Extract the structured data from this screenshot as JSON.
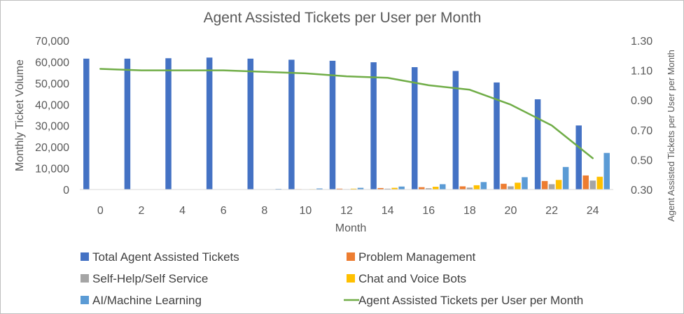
{
  "chart_data": {
    "type": "bar",
    "title": "Agent Assisted Tickets per User per Month",
    "xlabel": "Month",
    "ylabel": "Monthly Ticket Volume",
    "ylabel_right": "Agent Assisted Tickets per User per Month",
    "ylim": [
      0,
      70000
    ],
    "ylim_right": [
      0.3,
      1.3
    ],
    "y_ticks": [
      "0",
      "10,000",
      "20,000",
      "30,000",
      "40,000",
      "50,000",
      "60,000",
      "70,000"
    ],
    "y_right_ticks": [
      "0.30",
      "0.50",
      "0.70",
      "0.90",
      "1.10",
      "1.30"
    ],
    "categories": [
      "0",
      "2",
      "4",
      "6",
      "8",
      "10",
      "12",
      "14",
      "16",
      "18",
      "20",
      "22",
      "24"
    ],
    "grid": false,
    "legend_position": "bottom",
    "series": [
      {
        "name": "Total Agent Assisted Tickets",
        "kind": "bar",
        "axis": "left",
        "color": "#4472C4",
        "values": [
          61500,
          61500,
          61700,
          62000,
          61500,
          61000,
          60500,
          59800,
          57500,
          55700,
          50300,
          42400,
          30100
        ]
      },
      {
        "name": "Problem Management",
        "kind": "bar",
        "axis": "left",
        "color": "#ED7D31",
        "values": [
          0,
          0,
          0,
          0,
          100,
          200,
          400,
          700,
          1100,
          1500,
          2700,
          4000,
          6600
        ]
      },
      {
        "name": "Self-Help/Self Service",
        "kind": "bar",
        "axis": "left",
        "color": "#A5A5A5",
        "values": [
          0,
          0,
          0,
          0,
          50,
          100,
          200,
          400,
          600,
          900,
          1500,
          2500,
          4200
        ]
      },
      {
        "name": "Chat and Voice Bots",
        "kind": "bar",
        "axis": "left",
        "color": "#FFC000",
        "values": [
          0,
          0,
          0,
          0,
          100,
          200,
          400,
          800,
          1300,
          2000,
          3200,
          4500,
          6000
        ]
      },
      {
        "name": "AI/Machine Learning",
        "kind": "bar",
        "axis": "left",
        "color": "#5B9BD5",
        "values": [
          0,
          0,
          0,
          100,
          300,
          500,
          800,
          1400,
          2500,
          3500,
          5800,
          10600,
          17200
        ]
      },
      {
        "name": "Agent Assisted Tickets per User per Month",
        "kind": "line",
        "axis": "right",
        "color": "#70AD47",
        "values": [
          1.11,
          1.1,
          1.1,
          1.1,
          1.09,
          1.08,
          1.06,
          1.05,
          1.0,
          0.97,
          0.87,
          0.73,
          0.51
        ]
      }
    ]
  }
}
